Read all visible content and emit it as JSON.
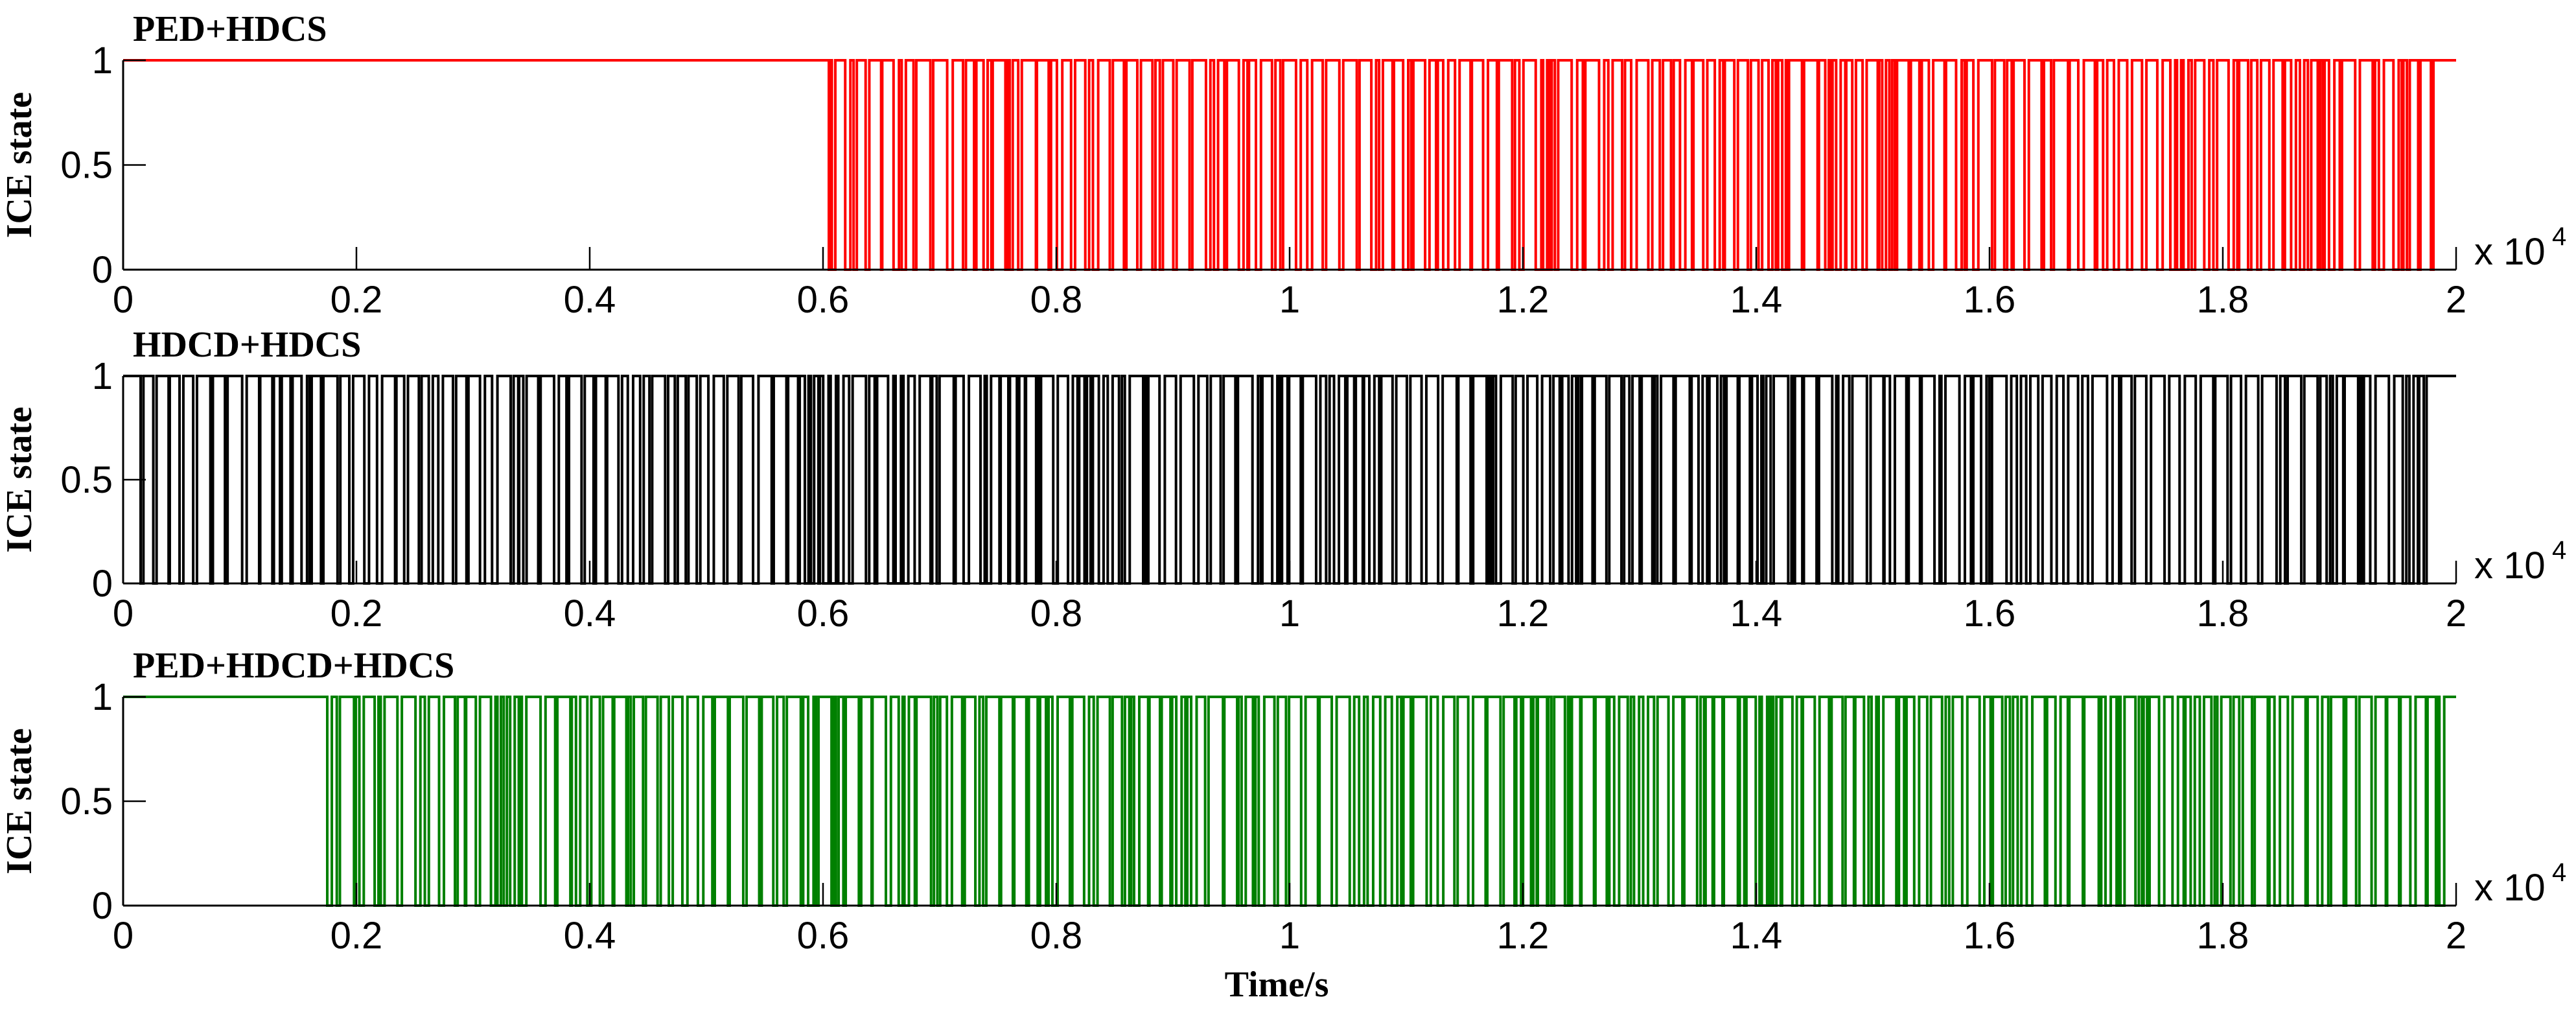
{
  "chart_data": [
    {
      "type": "line",
      "title": "PED+HDCS",
      "ylabel": "ICE state",
      "xlabel": "",
      "xlim": [
        0,
        20000
      ],
      "ylim": [
        0,
        1
      ],
      "x_ticks": [
        "0",
        "0.2",
        "0.4",
        "0.6",
        "0.8",
        "1",
        "1.2",
        "1.4",
        "1.6",
        "1.8",
        "2"
      ],
      "y_ticks": [
        "0",
        "0.5",
        "1"
      ],
      "x_multiplier": "x 10",
      "x_multiplier_exp": "4",
      "grid": false,
      "color": "#ff0000",
      "pattern": {
        "initial_state": 1,
        "switching_start": 6050,
        "switching_end": 19900,
        "final_state": 1
      }
    },
    {
      "type": "line",
      "title": "HDCD+HDCS",
      "ylabel": "ICE state",
      "xlabel": "",
      "xlim": [
        0,
        20000
      ],
      "ylim": [
        0,
        1
      ],
      "x_ticks": [
        "0",
        "0.2",
        "0.4",
        "0.6",
        "0.8",
        "1",
        "1.2",
        "1.4",
        "1.6",
        "1.8",
        "2"
      ],
      "y_ticks": [
        "0",
        "0.5",
        "1"
      ],
      "x_multiplier": "x 10",
      "x_multiplier_exp": "4",
      "grid": false,
      "color": "#000000",
      "pattern": {
        "initial_state": 1,
        "switching_start": 150,
        "switching_end": 19750,
        "final_state": 1
      }
    },
    {
      "type": "line",
      "title": "PED+HDCD+HDCS",
      "ylabel": "ICE state",
      "xlabel": "Time/s",
      "xlim": [
        0,
        20000
      ],
      "ylim": [
        0,
        1
      ],
      "x_ticks": [
        "0",
        "0.2",
        "0.4",
        "0.6",
        "0.8",
        "1",
        "1.2",
        "1.4",
        "1.6",
        "1.8",
        "2"
      ],
      "y_ticks": [
        "0",
        "0.5",
        "1"
      ],
      "x_multiplier": "x 10",
      "x_multiplier_exp": "4",
      "grid": false,
      "color": "#008000",
      "pattern": {
        "initial_state": 1,
        "switching_start": 1750,
        "switching_end": 19900,
        "final_state": 1
      }
    }
  ]
}
